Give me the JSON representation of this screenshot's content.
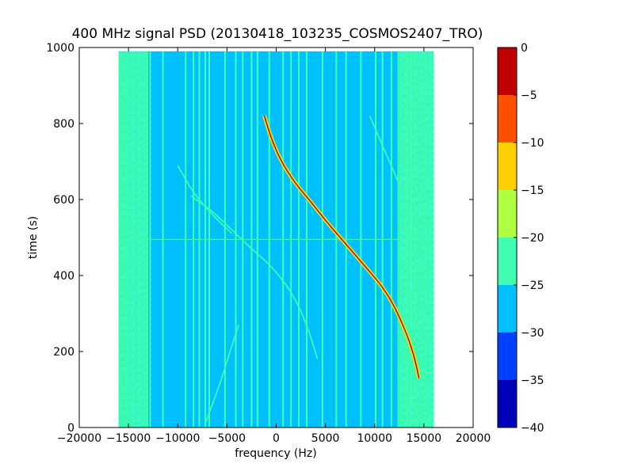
{
  "chart_data": {
    "type": "heatmap",
    "title": "400 MHz signal PSD (20130418_103235_COSMOS2407_TRO)",
    "xlabel": "frequency (Hz)",
    "ylabel": "time (s)",
    "xlim": [
      -20000,
      20000
    ],
    "ylim": [
      0,
      1000
    ],
    "x_ticks": [
      -20000,
      -15000,
      -10000,
      -5000,
      0,
      5000,
      10000,
      15000,
      20000
    ],
    "x_tick_labels": [
      "−20000",
      "−15000",
      "−10000",
      "−5000",
      "0",
      "5000",
      "10000",
      "15000",
      "20000"
    ],
    "y_ticks": [
      0,
      200,
      400,
      600,
      800,
      1000
    ],
    "y_tick_labels": [
      "0",
      "200",
      "400",
      "600",
      "800",
      "1000"
    ],
    "data_extent": {
      "freq_min": -16000,
      "freq_max": 16000,
      "time_min": 0,
      "time_max": 990
    },
    "background_level_db": -27.5,
    "edge_bands": [
      {
        "from": -16000,
        "to": -13000,
        "level_db": -22.5
      },
      {
        "from": 12500,
        "to": 16000,
        "level_db": -22.5
      }
    ],
    "vertical_lines_hz": [
      -12800,
      -11500,
      -9200,
      -8400,
      -7800,
      -7200,
      -6800,
      -5200,
      -4100,
      -3400,
      -2500,
      -1900,
      -700,
      700,
      1500,
      2300,
      3100,
      4700,
      6100,
      7100,
      8600,
      10100,
      10800,
      11700,
      12400,
      13700
    ],
    "vertical_line_level_db": -22.5,
    "horizontal_line_time_s": 495,
    "main_trace": {
      "level_db": -2.5,
      "points": [
        [
          -1200,
          820
        ],
        [
          -500,
          760
        ],
        [
          500,
          700
        ],
        [
          2000,
          640
        ],
        [
          3500,
          595
        ],
        [
          5000,
          545
        ],
        [
          6500,
          500
        ],
        [
          8000,
          455
        ],
        [
          9500,
          410
        ],
        [
          10800,
          370
        ],
        [
          12000,
          320
        ],
        [
          13200,
          250
        ],
        [
          14000,
          190
        ],
        [
          14500,
          130
        ]
      ]
    },
    "secondary_traces": [
      {
        "level_db": -22.5,
        "points": [
          [
            -8700,
            610
          ],
          [
            -6500,
            570
          ],
          [
            -4500,
            520
          ],
          [
            -2500,
            470
          ],
          [
            -500,
            425
          ],
          [
            1500,
            360
          ],
          [
            3000,
            280
          ],
          [
            4200,
            180
          ]
        ]
      },
      {
        "level_db": -22.5,
        "points": [
          [
            -7200,
            10
          ],
          [
            -6500,
            60
          ],
          [
            -5500,
            130
          ],
          [
            -4700,
            200
          ],
          [
            -3800,
            270
          ]
        ]
      },
      {
        "level_db": -22.5,
        "points": [
          [
            -10000,
            690
          ],
          [
            -8500,
            620
          ],
          [
            -6500,
            560
          ],
          [
            -4500,
            510
          ]
        ]
      },
      {
        "level_db": -22.5,
        "points": [
          [
            9500,
            820
          ],
          [
            10500,
            760
          ],
          [
            11500,
            700
          ],
          [
            12500,
            640
          ]
        ]
      }
    ],
    "colorbar": {
      "range": [
        -40,
        0
      ],
      "levels": [
        -40,
        -35,
        -30,
        -25,
        -20,
        -15,
        -10,
        -5,
        0
      ],
      "tick_labels": [
        "−40",
        "−35",
        "−30",
        "−25",
        "−20",
        "−15",
        "−10",
        "−5",
        "0"
      ],
      "colors": [
        "#0000b8",
        "#0040ff",
        "#00c0ff",
        "#40ffb0",
        "#b0ff40",
        "#ffd000",
        "#ff5000",
        "#c00000"
      ]
    }
  }
}
